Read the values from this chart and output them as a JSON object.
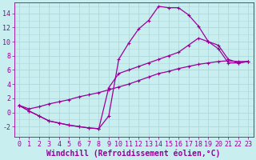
{
  "xlabel": "Windchill (Refroidissement éolien,°C)",
  "xlim": [
    -0.5,
    23.5
  ],
  "ylim": [
    -3.5,
    15.5
  ],
  "background_color": "#c8eef0",
  "grid_color": "#b0d8da",
  "line_color": "#990099",
  "curve1_x": [
    0,
    1,
    2,
    3,
    4,
    5,
    6,
    7,
    8,
    9,
    10,
    11,
    12,
    13,
    14,
    15,
    16,
    17,
    18,
    19,
    20,
    21,
    22,
    23
  ],
  "curve1_y": [
    1,
    0.2,
    -0.5,
    -1.2,
    -1.5,
    -1.8,
    -2.0,
    -2.2,
    -2.3,
    -0.5,
    7.5,
    9.8,
    11.8,
    13.0,
    15.0,
    14.8,
    14.8,
    13.8,
    12.2,
    10.0,
    9.0,
    7.0,
    7.0,
    7.2
  ],
  "curve2_x": [
    0,
    1,
    2,
    3,
    4,
    5,
    6,
    7,
    8,
    9,
    10,
    11,
    12,
    13,
    14,
    15,
    16,
    17,
    18,
    19,
    20,
    21,
    22,
    23
  ],
  "curve2_y": [
    1,
    0.2,
    -0.5,
    -1.2,
    -1.5,
    -1.8,
    -2.0,
    -2.2,
    -2.3,
    3.5,
    5.5,
    6.0,
    6.5,
    7.0,
    7.5,
    8.0,
    8.5,
    9.5,
    10.5,
    10.0,
    9.5,
    7.5,
    7.0,
    7.2
  ],
  "curve3_x": [
    0,
    1,
    2,
    3,
    4,
    5,
    6,
    7,
    8,
    9,
    10,
    11,
    12,
    13,
    14,
    15,
    16,
    17,
    18,
    19,
    20,
    21,
    22,
    23
  ],
  "curve3_y": [
    1,
    0.5,
    0.8,
    1.2,
    1.5,
    1.8,
    2.2,
    2.5,
    2.8,
    3.2,
    3.6,
    4.0,
    4.5,
    5.0,
    5.5,
    5.8,
    6.2,
    6.5,
    6.8,
    7.0,
    7.2,
    7.3,
    7.2,
    7.2
  ],
  "yticks": [
    -2,
    0,
    2,
    4,
    6,
    8,
    10,
    12,
    14
  ],
  "xticks": [
    0,
    1,
    2,
    3,
    4,
    5,
    6,
    7,
    8,
    9,
    10,
    11,
    12,
    13,
    14,
    15,
    16,
    17,
    18,
    19,
    20,
    21,
    22,
    23
  ],
  "fontsize_label": 7,
  "fontsize_tick": 6,
  "marker": "+"
}
